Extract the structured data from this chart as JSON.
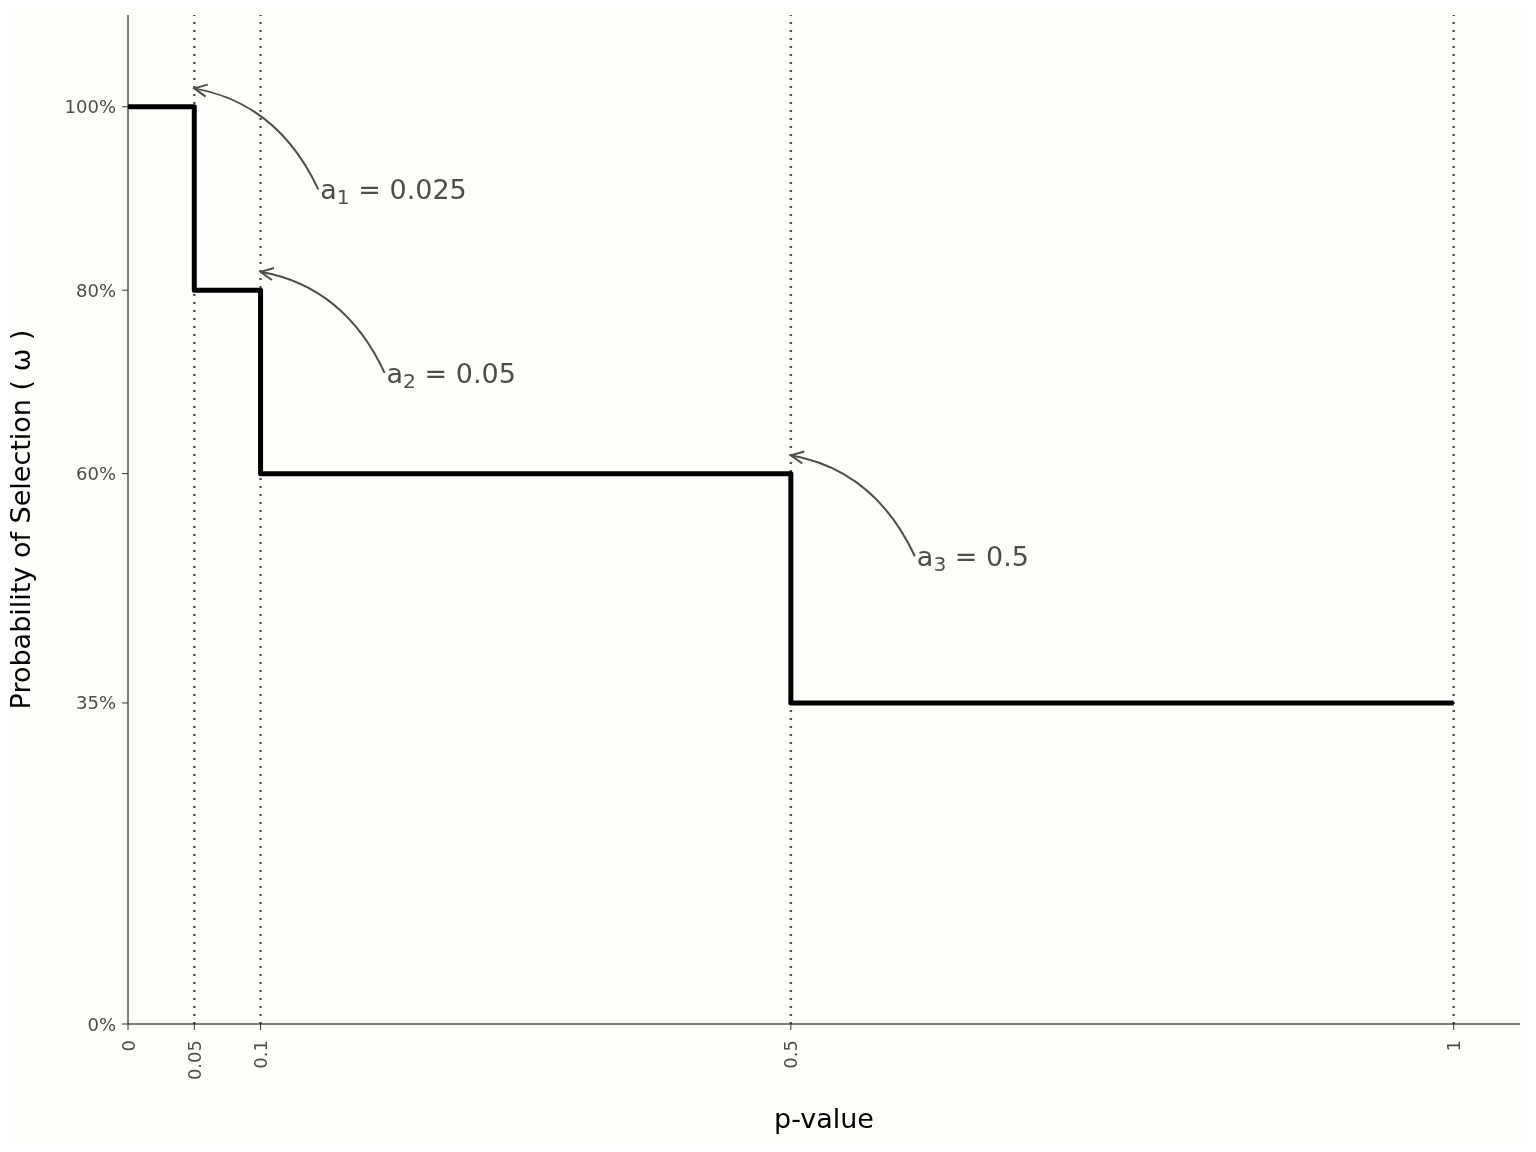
{
  "chart_data": {
    "type": "step",
    "xlabel": "p-value",
    "ylabel": "Probability of Selection ( ω )",
    "x": [
      0,
      0.05,
      0.1,
      0.5,
      1
    ],
    "series": [
      {
        "color": "#000000",
        "values": [
          100,
          80,
          60,
          35,
          35
        ]
      }
    ],
    "xlim": [
      0,
      1.05
    ],
    "xticks": [
      0,
      0.05,
      0.1,
      0.5,
      1
    ],
    "ylim": [
      0,
      110
    ],
    "yticks": [
      {
        "value": 0,
        "label": "0%"
      },
      {
        "value": 35,
        "label": "35%"
      },
      {
        "value": 60,
        "label": "60%"
      },
      {
        "value": 80,
        "label": "80%"
      },
      {
        "value": 100,
        "label": "100%"
      }
    ],
    "ref_lines": [
      {
        "axis": "x",
        "value": 0.05,
        "color": "#555555",
        "line_style": "dotted"
      },
      {
        "axis": "x",
        "value": 0.1,
        "color": "#555555",
        "line_style": "dotted"
      },
      {
        "axis": "x",
        "value": 0.5,
        "color": "#555555",
        "line_style": "dotted"
      },
      {
        "axis": "x",
        "value": 1,
        "color": "#555555",
        "line_style": "dotted"
      }
    ],
    "annotations": [
      {
        "text": "a$_{1}$ = 0.025",
        "x": 0.05,
        "y": 102
      },
      {
        "text": "a$_{2}$ = 0.05",
        "x": 0.1,
        "y": 82
      },
      {
        "text": "a$_{3}$ = 0.5",
        "x": 0.5,
        "y": 62
      }
    ],
    "grid": false,
    "legend": false,
    "marker": "none",
    "line_style": "solid"
  }
}
